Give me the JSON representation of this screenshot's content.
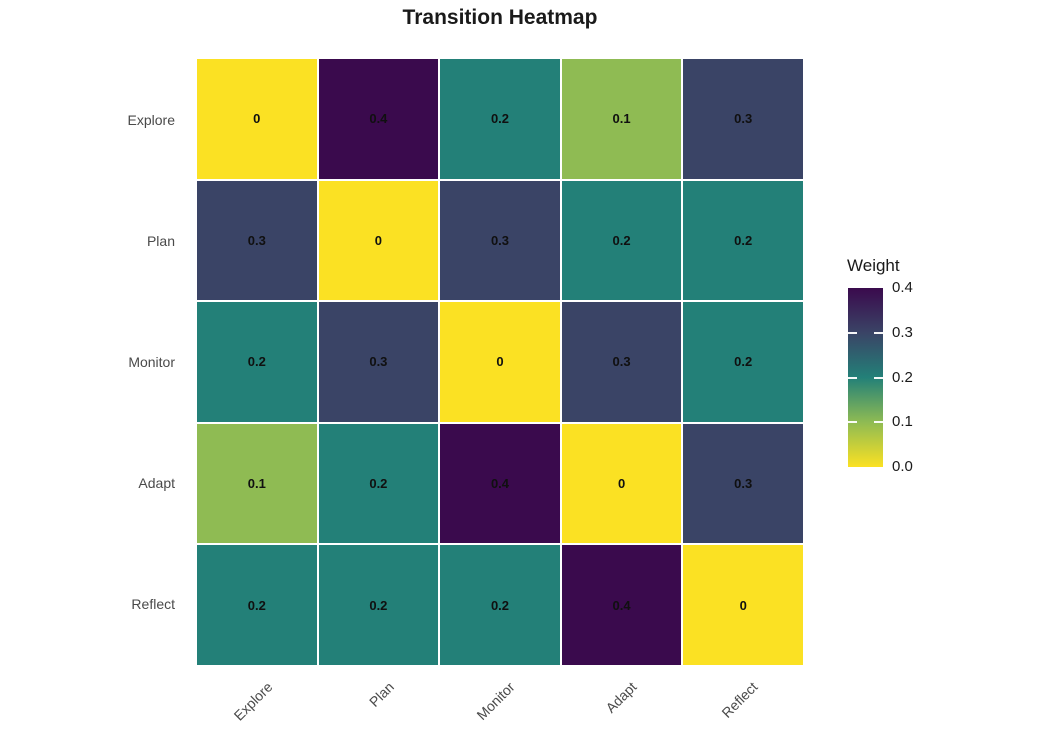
{
  "title": "Transition Heatmap",
  "chart_data": {
    "type": "heatmap",
    "title": "Transition Heatmap",
    "rows": [
      "Explore",
      "Plan",
      "Monitor",
      "Adapt",
      "Reflect"
    ],
    "columns": [
      "Explore",
      "Plan",
      "Monitor",
      "Adapt",
      "Reflect"
    ],
    "values": [
      [
        0,
        0.4,
        0.2,
        0.1,
        0.3
      ],
      [
        0.3,
        0,
        0.3,
        0.2,
        0.2
      ],
      [
        0.2,
        0.3,
        0,
        0.3,
        0.2
      ],
      [
        0.1,
        0.2,
        0.4,
        0,
        0.3
      ],
      [
        0.2,
        0.2,
        0.2,
        0.4,
        0
      ]
    ],
    "cell_labels": [
      [
        "0",
        "0.4",
        "0.2",
        "0.1",
        "0.3"
      ],
      [
        "0.3",
        "0",
        "0.3",
        "0.2",
        "0.2"
      ],
      [
        "0.2",
        "0.3",
        "0",
        "0.3",
        "0.2"
      ],
      [
        "0.1",
        "0.2",
        "0.4",
        "0",
        "0.3"
      ],
      [
        "0.2",
        "0.2",
        "0.2",
        "0.4",
        "0"
      ]
    ],
    "colormap": {
      "0": "#FBE123",
      "0.1": "#8FBB53",
      "0.2": "#238078",
      "0.3": "#3A4466",
      "0.4": "#3A0A4D"
    },
    "legend": {
      "title": "Weight",
      "min": 0.0,
      "max": 0.4,
      "tick_labels": [
        "0.4",
        "0.3",
        "0.2",
        "0.1",
        "0.0"
      ],
      "position": "right",
      "gradient_stops_bottom_to_top": [
        "#FBE123",
        "#8FBB53",
        "#238078",
        "#3A4466",
        "#3A0A4D"
      ]
    },
    "axis": {
      "x_label_angle_deg": 45,
      "grid_line_color": "#FFFFFF"
    }
  }
}
